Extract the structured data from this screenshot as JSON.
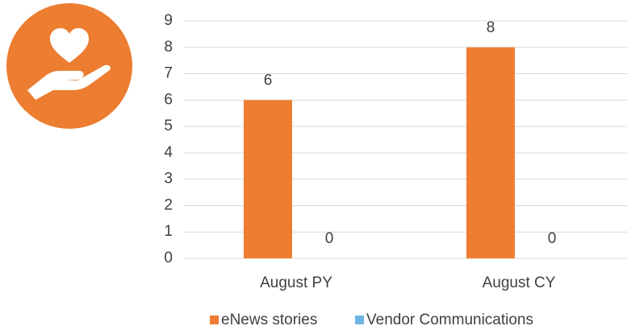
{
  "chart_data": {
    "type": "bar",
    "categories": [
      "August PY",
      "August CY"
    ],
    "series": [
      {
        "name": "eNews stories",
        "color": "#ED7D31",
        "values": [
          6,
          8
        ]
      },
      {
        "name": "Vendor Communications",
        "color": "#6CB4E4",
        "values": [
          0,
          0
        ]
      }
    ],
    "ylim": [
      0,
      9
    ],
    "yticks": [
      0,
      1,
      2,
      3,
      4,
      5,
      6,
      7,
      8,
      9
    ],
    "grid": true,
    "legend": "bottom"
  }
}
